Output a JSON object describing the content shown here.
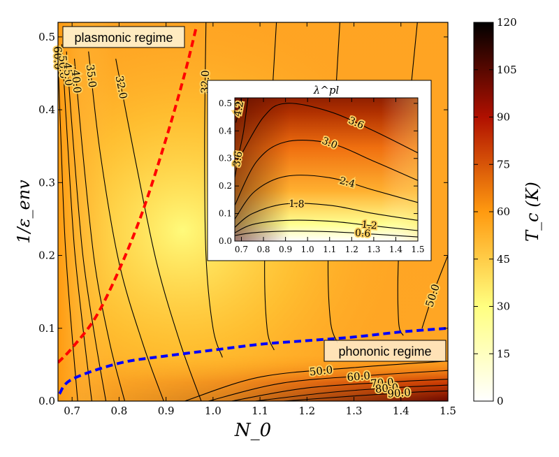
{
  "chart_data": [
    {
      "type": "heatmap",
      "xlabel": "N_0",
      "ylabel": "1/ε_env",
      "xlim": [
        0.67,
        1.5
      ],
      "ylim": [
        0.0,
        0.52
      ],
      "xticks": [
        "0.7",
        "0.8",
        "0.9",
        "1.0",
        "1.1",
        "1.2",
        "1.3",
        "1.4",
        "1.5"
      ],
      "yticks": [
        "0.0",
        "0.1",
        "0.2",
        "0.3",
        "0.4",
        "0.5"
      ],
      "colormap": "afmhot_r",
      "colors": {
        "low": "#ffffff",
        "mid_low": "#ffff80",
        "mid": "#ff9a10",
        "mid_high": "#b01000",
        "high": "#000000"
      },
      "colorbar": {
        "label": "T_c (K)",
        "range": [
          0,
          120
        ],
        "ticks": [
          "0",
          "15",
          "30",
          "45",
          "60",
          "75",
          "90",
          "105",
          "120"
        ]
      },
      "contours": [
        {
          "level": "60.0",
          "points": [
            [
              0.668,
              0.5
            ],
            [
              0.675,
              0.38
            ],
            [
              0.685,
              0.22
            ],
            [
              0.7,
              0.09
            ],
            [
              0.712,
              0.0
            ]
          ]
        },
        {
          "level": "50.0",
          "points": [
            [
              0.678,
              0.49
            ],
            [
              0.69,
              0.36
            ],
            [
              0.705,
              0.21
            ],
            [
              0.725,
              0.09
            ],
            [
              0.742,
              0.0
            ]
          ]
        },
        {
          "level": "45.0",
          "points": [
            [
              0.688,
              0.48
            ],
            [
              0.703,
              0.35
            ],
            [
              0.723,
              0.2
            ],
            [
              0.748,
              0.09
            ],
            [
              0.772,
              0.0
            ]
          ]
        },
        {
          "level": "40.0",
          "points": [
            [
              0.705,
              0.47
            ],
            [
              0.723,
              0.34
            ],
            [
              0.748,
              0.19
            ],
            [
              0.78,
              0.08
            ],
            [
              0.812,
              0.0
            ]
          ]
        },
        {
          "level": "35.0",
          "points": [
            [
              0.735,
              0.48
            ],
            [
              0.76,
              0.34
            ],
            [
              0.8,
              0.19
            ],
            [
              0.85,
              0.08
            ],
            [
              0.895,
              0.0
            ]
          ]
        },
        {
          "level": "32.0",
          "points": [
            [
              0.793,
              0.47
            ],
            [
              0.835,
              0.33
            ],
            [
              0.88,
              0.19
            ],
            [
              0.93,
              0.08
            ],
            [
              0.975,
              0.0
            ]
          ]
        },
        {
          "level": "32.0",
          "points": [
            [
              0.985,
              0.52
            ],
            [
              0.982,
              0.35
            ],
            [
              0.985,
              0.2
            ],
            [
              1.0,
              0.1
            ],
            [
              1.02,
              0.06
            ]
          ]
        },
        {
          "level": "35.0",
          "points": [
            [
              1.135,
              0.52
            ],
            [
              1.12,
              0.35
            ],
            [
              1.11,
              0.2
            ],
            [
              1.115,
              0.1
            ],
            [
              1.13,
              0.07
            ]
          ]
        },
        {
          "level": "40.0",
          "points": [
            [
              1.27,
              0.52
            ],
            [
              1.255,
              0.35
            ],
            [
              1.245,
              0.2
            ],
            [
              1.25,
              0.11
            ],
            [
              1.265,
              0.08
            ]
          ]
        },
        {
          "level": "45.0",
          "points": [
            [
              1.435,
              0.52
            ],
            [
              1.41,
              0.35
            ],
            [
              1.395,
              0.2
            ],
            [
              1.395,
              0.11
            ],
            [
              1.405,
              0.09
            ]
          ]
        },
        {
          "level": "50.0",
          "points": [
            [
              1.5,
              0.2
            ],
            [
              1.47,
              0.15
            ],
            [
              1.445,
              0.1
            ]
          ]
        },
        {
          "level": "50.0",
          "points": [
            [
              0.94,
              0.0
            ],
            [
              1.1,
              0.033
            ],
            [
              1.3,
              0.046
            ],
            [
              1.5,
              0.055
            ]
          ]
        },
        {
          "level": "60.0",
          "points": [
            [
              0.99,
              0.0
            ],
            [
              1.15,
              0.025
            ],
            [
              1.35,
              0.036
            ],
            [
              1.5,
              0.042
            ]
          ]
        },
        {
          "level": "70.0",
          "points": [
            [
              1.04,
              0.0
            ],
            [
              1.2,
              0.018
            ],
            [
              1.4,
              0.027
            ],
            [
              1.5,
              0.03
            ]
          ]
        },
        {
          "level": "80.0",
          "points": [
            [
              1.09,
              0.0
            ],
            [
              1.25,
              0.012
            ],
            [
              1.4,
              0.019
            ],
            [
              1.5,
              0.022
            ]
          ]
        },
        {
          "level": "90.0",
          "points": [
            [
              1.15,
              0.0
            ],
            [
              1.3,
              0.007
            ],
            [
              1.42,
              0.012
            ],
            [
              1.5,
              0.014
            ]
          ]
        }
      ],
      "boundaries": [
        {
          "color": "#ff0000",
          "style": "dashed",
          "points": [
            [
              0.67,
              0.053
            ],
            [
              0.7,
              0.073
            ],
            [
              0.75,
              0.115
            ],
            [
              0.8,
              0.18
            ],
            [
              0.85,
              0.26
            ],
            [
              0.9,
              0.36
            ],
            [
              0.94,
              0.45
            ],
            [
              0.965,
              0.515
            ]
          ]
        },
        {
          "color": "#0000ff",
          "style": "dashed",
          "points": [
            [
              0.673,
              0.01
            ],
            [
              0.7,
              0.03
            ],
            [
              0.8,
              0.052
            ],
            [
              0.9,
              0.062
            ],
            [
              1.0,
              0.07
            ],
            [
              1.1,
              0.078
            ],
            [
              1.2,
              0.083
            ],
            [
              1.3,
              0.088
            ],
            [
              1.4,
              0.095
            ],
            [
              1.5,
              0.1
            ]
          ]
        }
      ],
      "annotations": [
        "plasmonic regime",
        "phononic regime"
      ]
    },
    {
      "type": "heatmap",
      "title": "λ^pl",
      "xlim": [
        0.67,
        1.5
      ],
      "ylim": [
        0.0,
        0.52
      ],
      "xticks": [
        "0.7",
        "0.8",
        "0.9",
        "1.0",
        "1.1",
        "1.2",
        "1.3",
        "1.4",
        "1.5"
      ],
      "yticks": [
        "0.0",
        "0.1",
        "0.2",
        "0.3",
        "0.4",
        "0.5"
      ],
      "contours": [
        {
          "level": "0.6",
          "points": [
            [
              0.67,
              0.02
            ],
            [
              0.75,
              0.03
            ],
            [
              0.9,
              0.036
            ],
            [
              1.1,
              0.034
            ],
            [
              1.3,
              0.025
            ],
            [
              1.5,
              0.015
            ]
          ]
        },
        {
          "level": "1.2",
          "points": [
            [
              0.67,
              0.03
            ],
            [
              0.75,
              0.06
            ],
            [
              0.9,
              0.075
            ],
            [
              1.1,
              0.072
            ],
            [
              1.3,
              0.055
            ],
            [
              1.5,
              0.038
            ]
          ]
        },
        {
          "level": "1.8",
          "points": [
            [
              0.67,
              0.05
            ],
            [
              0.75,
              0.1
            ],
            [
              0.9,
              0.135
            ],
            [
              1.1,
              0.13
            ],
            [
              1.3,
              0.1
            ],
            [
              1.5,
              0.075
            ]
          ]
        },
        {
          "level": "2.4",
          "points": [
            [
              0.67,
              0.08
            ],
            [
              0.76,
              0.18
            ],
            [
              0.9,
              0.235
            ],
            [
              1.1,
              0.23
            ],
            [
              1.3,
              0.185
            ],
            [
              1.5,
              0.14
            ]
          ]
        },
        {
          "level": "3.0",
          "points": [
            [
              0.67,
              0.13
            ],
            [
              0.77,
              0.29
            ],
            [
              0.9,
              0.36
            ],
            [
              1.1,
              0.355
            ],
            [
              1.3,
              0.29
            ],
            [
              1.5,
              0.22
            ]
          ]
        },
        {
          "level": "3.6",
          "points": [
            [
              0.69,
              0.3
            ],
            [
              0.8,
              0.45
            ],
            [
              0.9,
              0.5
            ],
            [
              1.1,
              0.47
            ],
            [
              1.3,
              0.4
            ],
            [
              1.5,
              0.32
            ]
          ]
        },
        {
          "level": "3.6",
          "points": [
            [
              0.67,
              0.23
            ],
            [
              0.69,
              0.32
            ],
            [
              0.71,
              0.4
            ],
            [
              0.73,
              0.52
            ]
          ]
        },
        {
          "level": "4.2",
          "points": [
            [
              0.675,
              0.43
            ],
            [
              0.69,
              0.48
            ],
            [
              0.7,
              0.52
            ]
          ]
        }
      ]
    }
  ]
}
